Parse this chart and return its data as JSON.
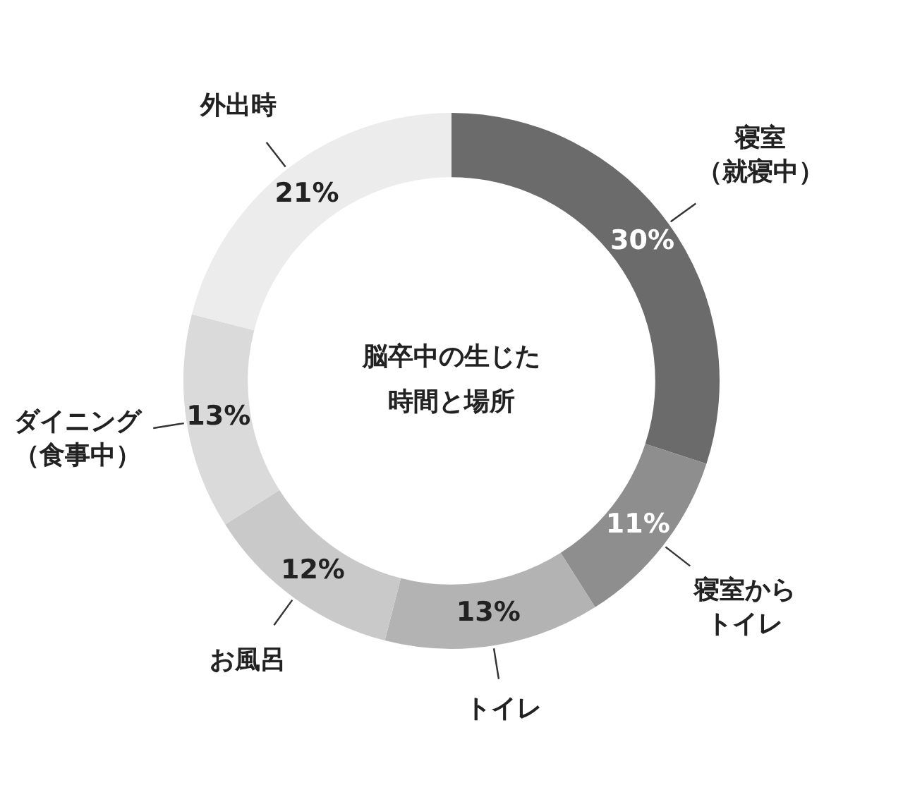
{
  "chart_data": {
    "type": "donut",
    "title": "脳卒中の生じた時間と場所",
    "categories": [
      "寝室（就寝中）",
      "寝室からトイレ",
      "トイレ",
      "お風呂",
      "ダイニング（食事中）",
      "外出時"
    ],
    "values": [
      30,
      11,
      13,
      12,
      13,
      21
    ],
    "colors": [
      "#6b6b6b",
      "#8e8e8e",
      "#b3b3b3",
      "#c9c9c9",
      "#dadada",
      "#ececec"
    ],
    "value_labels": [
      "30%",
      "11%",
      "13%",
      "12%",
      "13%",
      "21%"
    ],
    "legend": false
  }
}
